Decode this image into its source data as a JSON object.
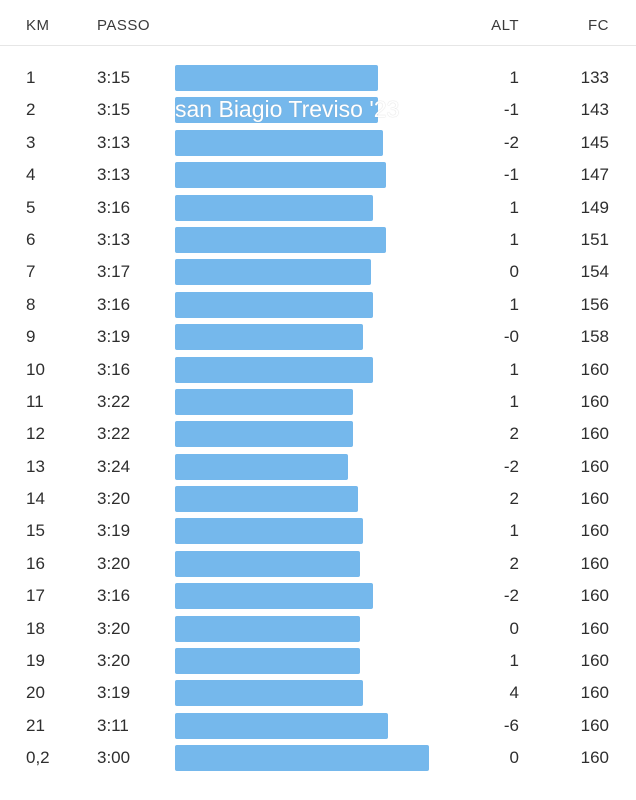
{
  "header": {
    "km": "KM",
    "pace": "PASSO",
    "alt": "ALT",
    "hr": "FC"
  },
  "overlay_title": "san Biagio Treviso '23",
  "bar_color": "#75b8ec",
  "splits": [
    {
      "km": "1",
      "pace": "3:15",
      "alt": "1",
      "hr": "133",
      "bar": 0.8
    },
    {
      "km": "2",
      "pace": "3:15",
      "alt": "-1",
      "hr": "143",
      "bar": 0.8
    },
    {
      "km": "3",
      "pace": "3:13",
      "alt": "-2",
      "hr": "145",
      "bar": 0.82
    },
    {
      "km": "4",
      "pace": "3:13",
      "alt": "-1",
      "hr": "147",
      "bar": 0.83
    },
    {
      "km": "5",
      "pace": "3:16",
      "alt": "1",
      "hr": "149",
      "bar": 0.78
    },
    {
      "km": "6",
      "pace": "3:13",
      "alt": "1",
      "hr": "151",
      "bar": 0.83
    },
    {
      "km": "7",
      "pace": "3:17",
      "alt": "0",
      "hr": "154",
      "bar": 0.77
    },
    {
      "km": "8",
      "pace": "3:16",
      "alt": "1",
      "hr": "156",
      "bar": 0.78
    },
    {
      "km": "9",
      "pace": "3:19",
      "alt": "-0",
      "hr": "158",
      "bar": 0.74
    },
    {
      "km": "10",
      "pace": "3:16",
      "alt": "1",
      "hr": "160",
      "bar": 0.78
    },
    {
      "km": "11",
      "pace": "3:22",
      "alt": "1",
      "hr": "160",
      "bar": 0.7
    },
    {
      "km": "12",
      "pace": "3:22",
      "alt": "2",
      "hr": "160",
      "bar": 0.7
    },
    {
      "km": "13",
      "pace": "3:24",
      "alt": "-2",
      "hr": "160",
      "bar": 0.68
    },
    {
      "km": "14",
      "pace": "3:20",
      "alt": "2",
      "hr": "160",
      "bar": 0.72
    },
    {
      "km": "15",
      "pace": "3:19",
      "alt": "1",
      "hr": "160",
      "bar": 0.74
    },
    {
      "km": "16",
      "pace": "3:20",
      "alt": "2",
      "hr": "160",
      "bar": 0.73
    },
    {
      "km": "17",
      "pace": "3:16",
      "alt": "-2",
      "hr": "160",
      "bar": 0.78
    },
    {
      "km": "18",
      "pace": "3:20",
      "alt": "0",
      "hr": "160",
      "bar": 0.73
    },
    {
      "km": "19",
      "pace": "3:20",
      "alt": "1",
      "hr": "160",
      "bar": 0.73
    },
    {
      "km": "20",
      "pace": "3:19",
      "alt": "4",
      "hr": "160",
      "bar": 0.74
    },
    {
      "km": "21",
      "pace": "3:11",
      "alt": "-6",
      "hr": "160",
      "bar": 0.84
    },
    {
      "km": "0,2",
      "pace": "3:00",
      "alt": "0",
      "hr": "160",
      "bar": 1.0
    }
  ]
}
